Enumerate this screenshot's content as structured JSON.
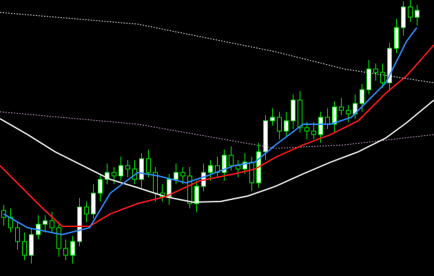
{
  "chart_data": {
    "type": "candlestick",
    "xlim": [
      -0.5,
      62.5
    ],
    "ylim": [
      0,
      400
    ],
    "background": "#000000",
    "wick_color": "#00ff00",
    "up_color": "#ffffff",
    "down_color": "#000000",
    "open": [
      95,
      85,
      70,
      50,
      30,
      60,
      75,
      80,
      70,
      40,
      30,
      50,
      100,
      90,
      120,
      140,
      150,
      145,
      160,
      155,
      140,
      170,
      150,
      120,
      115,
      140,
      150,
      145,
      105,
      130,
      150,
      160,
      150,
      175,
      160,
      155,
      165,
      135,
      180,
      225,
      230,
      210,
      225,
      255,
      215,
      210,
      205,
      230,
      220,
      245,
      240,
      235,
      250,
      270,
      300,
      295,
      280,
      330,
      360,
      390,
      375
    ],
    "high": [
      103,
      98,
      78,
      63,
      68,
      88,
      88,
      93,
      78,
      53,
      58,
      113,
      108,
      133,
      148,
      163,
      158,
      173,
      168,
      168,
      178,
      183,
      158,
      133,
      148,
      163,
      158,
      158,
      138,
      163,
      168,
      173,
      183,
      188,
      168,
      178,
      173,
      193,
      233,
      243,
      238,
      238,
      263,
      268,
      223,
      223,
      238,
      243,
      253,
      258,
      248,
      263,
      278,
      313,
      308,
      308,
      338,
      373,
      398,
      403,
      393
    ],
    "low": [
      73,
      63,
      38,
      23,
      18,
      53,
      63,
      63,
      28,
      23,
      18,
      43,
      78,
      83,
      108,
      133,
      133,
      138,
      143,
      133,
      128,
      143,
      108,
      108,
      103,
      133,
      133,
      98,
      93,
      123,
      138,
      143,
      138,
      153,
      143,
      148,
      123,
      128,
      168,
      218,
      198,
      203,
      213,
      208,
      198,
      198,
      193,
      213,
      208,
      233,
      223,
      228,
      238,
      263,
      283,
      273,
      268,
      323,
      348,
      368,
      363
    ],
    "close": [
      85,
      70,
      50,
      30,
      60,
      75,
      80,
      70,
      40,
      30,
      50,
      100,
      90,
      120,
      140,
      150,
      145,
      160,
      155,
      140,
      170,
      150,
      120,
      115,
      140,
      150,
      145,
      105,
      130,
      150,
      160,
      150,
      175,
      160,
      155,
      165,
      135,
      180,
      225,
      230,
      210,
      225,
      255,
      215,
      210,
      205,
      230,
      220,
      245,
      240,
      235,
      250,
      270,
      300,
      295,
      280,
      330,
      360,
      390,
      375,
      385
    ],
    "lines": [
      {
        "color": "#ffffff",
        "style": "dotted",
        "x": [
          -0.5,
          19.5,
          39.5,
          49.5,
          62.5
        ],
        "values": [
          382,
          365,
          325,
          300,
          280
        ]
      },
      {
        "color": "#e0b0e0",
        "style": "dotted",
        "x": [
          -0.5,
          19.5,
          39.5,
          49.5,
          62.5
        ],
        "values": [
          238,
          220,
          185,
          190,
          205
        ]
      },
      {
        "color": "#e8e8e8",
        "style": "solid",
        "x": [
          -0.5,
          3.5,
          7.5,
          11.5,
          15.5,
          19.5,
          23.5,
          27.5,
          31.5,
          35.5,
          39.5,
          43.5,
          47.5,
          51.5,
          55.5,
          58.5,
          62.5
        ],
        "values": [
          228,
          205,
          180,
          160,
          140,
          128,
          115,
          107,
          108,
          116,
          130,
          148,
          165,
          180,
          200,
          222,
          255
        ]
      },
      {
        "color": "#ff1a1a",
        "style": "solid",
        "x": [
          -0.5,
          2.5,
          5.5,
          8.5,
          12.5,
          15.5,
          19.5,
          23.5,
          28.5,
          33.5,
          36.5,
          39.5,
          43.5,
          47.5,
          51.5,
          55.5,
          58.5,
          62.5
        ],
        "values": [
          160,
          130,
          100,
          72,
          72,
          90,
          105,
          115,
          138,
          148,
          155,
          172,
          190,
          205,
          225,
          265,
          290,
          335
        ]
      },
      {
        "color": "#2f8cff",
        "style": "solid",
        "x": [
          0,
          3.5,
          8.5,
          12.5,
          15.5,
          19.5,
          22.5,
          26.5,
          29.5,
          33.5,
          36.5,
          39.5,
          43.5,
          47.5,
          50.5,
          53.5,
          55.5,
          58.5,
          60
        ],
        "values": [
          90,
          70,
          60,
          70,
          120,
          150,
          145,
          135,
          145,
          160,
          165,
          190,
          220,
          220,
          230,
          260,
          280,
          340,
          360
        ]
      }
    ]
  }
}
